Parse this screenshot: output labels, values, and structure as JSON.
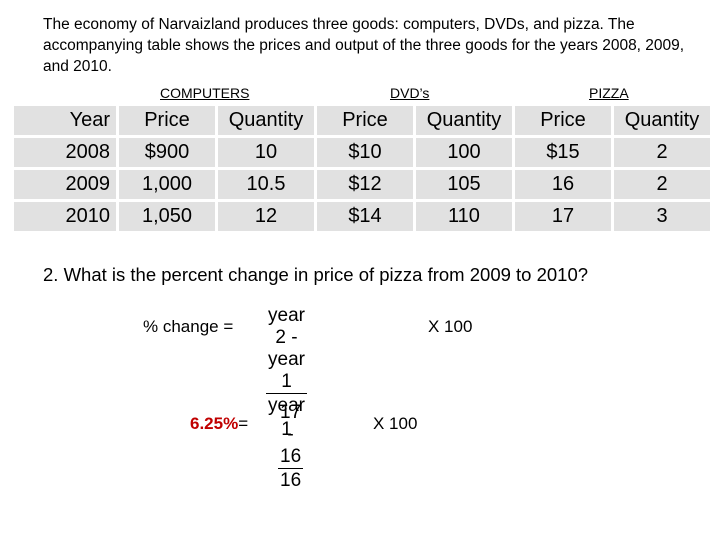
{
  "intro": "The economy of Narvaizland produces three goods: computers, DVDs, and pizza. The accompanying table shows the prices and output of the three goods for the years 2008, 2009, and 2010.",
  "goods_headers": {
    "computers": "COMPUTERS",
    "dvds": "DVD’s",
    "pizza": "PIZZA"
  },
  "table": {
    "columns": [
      "Year",
      "Price",
      "Quantity",
      "Price",
      "Quantity",
      "Price",
      "Quantity"
    ],
    "rows": [
      [
        "2008",
        "$900",
        "10",
        "$10",
        "100",
        "$15",
        "2"
      ],
      [
        "2009",
        "1,000",
        "10.5",
        "$12",
        "105",
        "16",
        "2"
      ],
      [
        "2010",
        "1,050",
        "12",
        "$14",
        "110",
        "17",
        "3"
      ]
    ]
  },
  "question": "2.  What is the percent change in price of pizza from 2009 to 2010?",
  "formula": {
    "lhs": "% change =",
    "numerator": "year 2  -  year 1",
    "denominator": "year 1",
    "multiplier": "X  100"
  },
  "answer": {
    "result": "6.25%",
    "equals": "=",
    "numerator": "17  -  16",
    "denominator": "16",
    "multiplier": "X  100"
  }
}
